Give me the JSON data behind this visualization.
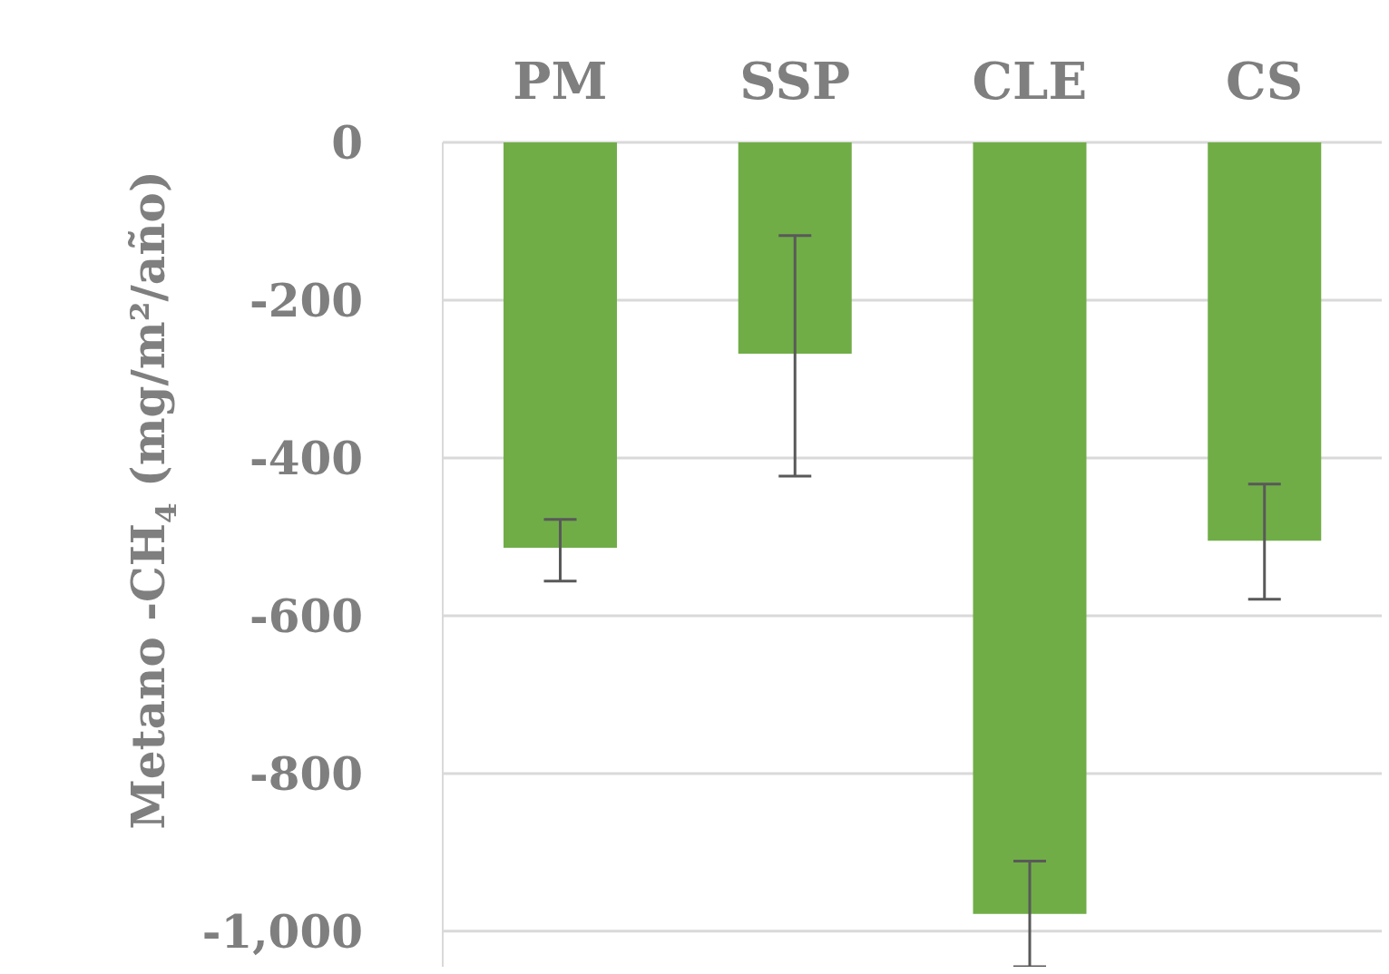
{
  "chart_data": {
    "type": "bar",
    "ylabel": "Metano -CH$_{4}$ (mg/m²/año)",
    "categories": [
      "PM",
      "SSP",
      "CLE",
      "CS"
    ],
    "series": [
      {
        "color": "#70ad47",
        "values": [
          -514,
          -268,
          -978,
          -505
        ],
        "errors": [
          [
            -556,
            -478
          ],
          [
            -423,
            -118
          ],
          [
            -1045,
            -911
          ],
          [
            -579,
            -433
          ]
        ]
      }
    ],
    "ylim": [
      -1045,
      0
    ],
    "yticks": [
      0,
      -200,
      -400,
      -600,
      -800,
      {
        "value": -1000,
        "label": "-1,000"
      }
    ],
    "grid": "y"
  }
}
